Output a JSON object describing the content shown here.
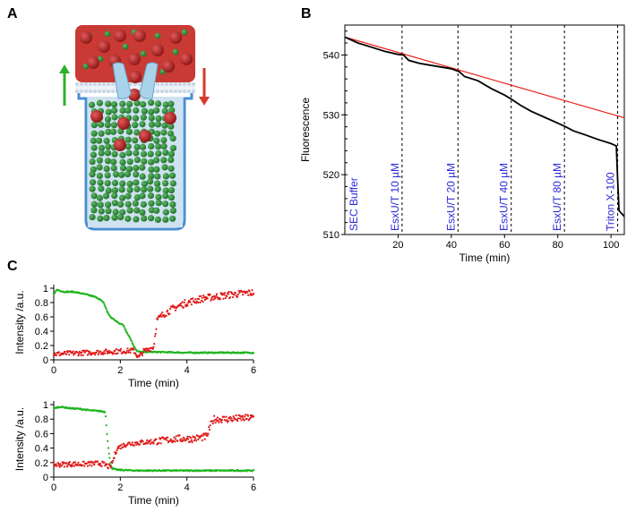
{
  "panels": {
    "a": "A",
    "b": "B",
    "c": "C"
  },
  "colors": {
    "black_trace": "#000000",
    "fit_line": "#e8241c",
    "green": "#1fb51f",
    "red": "#e11919",
    "annotation": "#2a2ad8",
    "outer_sphere": "#b52020",
    "inner_sphere": "#2f8a3a",
    "well": "#7fb0d8",
    "arrow_up": "#2fb02f",
    "arrow_down": "#d63a2a"
  },
  "chart_data": [
    {
      "id": "B",
      "type": "line",
      "xlabel": "Time (min)",
      "ylabel": "Fluorescence",
      "xlim": [
        0,
        105
      ],
      "ylim": [
        510,
        545
      ],
      "xticks": [
        20,
        40,
        60,
        80,
        100
      ],
      "yticks": [
        510,
        520,
        530,
        540
      ],
      "series": [
        {
          "points": [
            [
              0,
              543
            ],
            [
              5,
              542
            ],
            [
              10,
              541.3
            ],
            [
              15,
              540.6
            ],
            [
              20,
              540.1
            ],
            [
              22,
              540
            ],
            [
              24,
              539.1
            ],
            [
              28,
              538.6
            ],
            [
              32,
              538.3
            ],
            [
              36,
              538
            ],
            [
              40,
              537.7
            ],
            [
              43,
              537.2
            ],
            [
              45,
              536.4
            ],
            [
              50,
              535.7
            ],
            [
              55,
              534.4
            ],
            [
              60,
              533.3
            ],
            [
              63,
              532.5
            ],
            [
              66,
              531.6
            ],
            [
              70,
              530.6
            ],
            [
              75,
              529.6
            ],
            [
              80,
              528.6
            ],
            [
              83,
              528
            ],
            [
              86,
              527.3
            ],
            [
              90,
              526.7
            ],
            [
              95,
              525.9
            ],
            [
              100,
              525.2
            ],
            [
              102,
              524.8
            ],
            [
              102.5,
              519
            ],
            [
              103,
              514
            ],
            [
              105,
              513
            ]
          ]
        },
        {
          "points": [
            [
              0,
              543
            ],
            [
              105,
              529.5
            ]
          ]
        }
      ],
      "annotations": [
        {
          "x": 0,
          "text": "SEC Buffer"
        },
        {
          "x": 21.5,
          "text": "EsxU/T 10 µM"
        },
        {
          "x": 42.5,
          "text": "EsxU/T 20 µM"
        },
        {
          "x": 62.5,
          "text": "EsxU/T 40 µM"
        },
        {
          "x": 82.5,
          "text": "EsxU/T 80 µM"
        },
        {
          "x": 102.5,
          "text": "Triton X-100"
        }
      ]
    },
    {
      "id": "C-top",
      "type": "scatter",
      "xlabel": "Time (min)",
      "ylabel": "Intensity /a.u.",
      "xlim": [
        0,
        6
      ],
      "ylim": [
        0,
        1.05
      ],
      "xticks": [
        0,
        2,
        4,
        6
      ],
      "yticks": [
        0,
        0.2,
        0.4,
        0.6,
        0.8,
        1
      ],
      "series": [
        {
          "color": "green",
          "points": [
            [
              0,
              0.92
            ],
            [
              0.1,
              0.98
            ],
            [
              0.3,
              0.95
            ],
            [
              0.6,
              0.95
            ],
            [
              1.0,
              0.91
            ],
            [
              1.3,
              0.87
            ],
            [
              1.5,
              0.8
            ],
            [
              1.6,
              0.68
            ],
            [
              1.7,
              0.6
            ],
            [
              1.9,
              0.53
            ],
            [
              2.1,
              0.48
            ],
            [
              2.2,
              0.38
            ],
            [
              2.3,
              0.3
            ],
            [
              2.4,
              0.2
            ],
            [
              2.5,
              0.12
            ],
            [
              2.6,
              0.11
            ],
            [
              3,
              0.11
            ],
            [
              4,
              0.1
            ],
            [
              5,
              0.1
            ],
            [
              6,
              0.1
            ]
          ]
        },
        {
          "color": "red",
          "points": [
            [
              0,
              0.08
            ],
            [
              0.5,
              0.09
            ],
            [
              1,
              0.1
            ],
            [
              1.5,
              0.11
            ],
            [
              2,
              0.12
            ],
            [
              2.4,
              0.13
            ],
            [
              2.55,
              0.03
            ],
            [
              2.7,
              0.12
            ],
            [
              3.0,
              0.18
            ],
            [
              3.1,
              0.55
            ],
            [
              3.3,
              0.64
            ],
            [
              3.6,
              0.72
            ],
            [
              4,
              0.8
            ],
            [
              4.5,
              0.86
            ],
            [
              5,
              0.89
            ],
            [
              5.5,
              0.92
            ],
            [
              6,
              0.94
            ]
          ]
        }
      ]
    },
    {
      "id": "C-bottom",
      "type": "scatter",
      "xlabel": "Time (min)",
      "ylabel": "Intensity /a.u.",
      "xlim": [
        0,
        6
      ],
      "ylim": [
        0,
        1.05
      ],
      "xticks": [
        0,
        2,
        4,
        6
      ],
      "yticks": [
        0,
        0.2,
        0.4,
        0.6,
        0.8,
        1
      ],
      "series": [
        {
          "color": "green",
          "points": [
            [
              0,
              0.95
            ],
            [
              0.2,
              0.97
            ],
            [
              0.5,
              0.95
            ],
            [
              0.8,
              0.94
            ],
            [
              1.1,
              0.92
            ],
            [
              1.4,
              0.91
            ],
            [
              1.55,
              0.9
            ],
            [
              1.6,
              0.6
            ],
            [
              1.65,
              0.35
            ],
            [
              1.7,
              0.2
            ],
            [
              1.75,
              0.12
            ],
            [
              1.9,
              0.1
            ],
            [
              2.5,
              0.09
            ],
            [
              4,
              0.09
            ],
            [
              6,
              0.09
            ]
          ]
        },
        {
          "color": "red",
          "points": [
            [
              0,
              0.17
            ],
            [
              0.5,
              0.18
            ],
            [
              1,
              0.18
            ],
            [
              1.4,
              0.19
            ],
            [
              1.6,
              0.16
            ],
            [
              1.7,
              0.13
            ],
            [
              1.8,
              0.25
            ],
            [
              1.9,
              0.4
            ],
            [
              2.2,
              0.46
            ],
            [
              2.7,
              0.48
            ],
            [
              3.2,
              0.5
            ],
            [
              3.7,
              0.53
            ],
            [
              4.2,
              0.53
            ],
            [
              4.6,
              0.56
            ],
            [
              4.7,
              0.7
            ],
            [
              4.8,
              0.8
            ],
            [
              5.2,
              0.8
            ],
            [
              5.6,
              0.81
            ],
            [
              6,
              0.82
            ]
          ]
        }
      ]
    }
  ]
}
